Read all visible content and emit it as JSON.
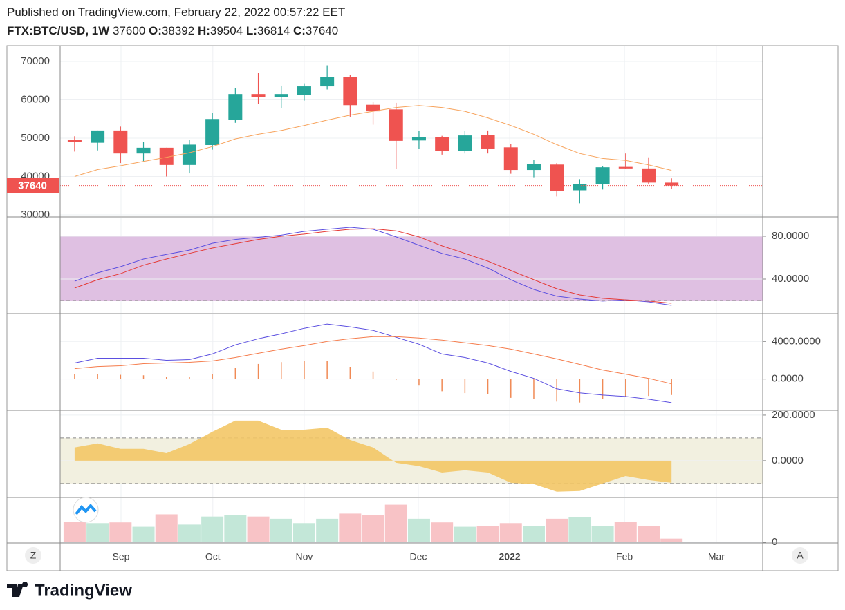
{
  "header": {
    "published": "Published on TradingView.com, February 22, 2022 00:57:22 EET",
    "symbol": "FTX:BTC/USD, 1W",
    "price": 37600,
    "ohlc": [
      {
        "label": "O:",
        "value": 38392
      },
      {
        "label": "H:",
        "value": 39504
      },
      {
        "label": "L:",
        "value": 36814
      },
      {
        "label": "C:",
        "value": 37640
      }
    ]
  },
  "buttons": {
    "left": "Z",
    "right": "A"
  },
  "footer": {
    "brand": "TradingView"
  },
  "chart_data": [
    {
      "type": "candlestick",
      "x": [
        0,
        1,
        2,
        3,
        4,
        5,
        6,
        7,
        8,
        9,
        10,
        11,
        12,
        13,
        14,
        15,
        16,
        17,
        18,
        19,
        20,
        21,
        22,
        23,
        24,
        25,
        26
      ],
      "xlim": [
        -0.63,
        29.97
      ],
      "xticks": [
        {
          "value": 2.02,
          "label": "Sep"
        },
        {
          "value": 6.02,
          "label": "Oct"
        },
        {
          "value": 10.0,
          "label": "Nov"
        },
        {
          "value": 14.97,
          "label": "Dec"
        },
        {
          "value": 18.95,
          "label": "2022"
        },
        {
          "value": 23.95,
          "label": "Feb"
        },
        {
          "value": 27.95,
          "label": "Mar"
        }
      ],
      "open": [
        49500,
        48800,
        52000,
        46000,
        47500,
        43000,
        48200,
        54800,
        61500,
        60800,
        61300,
        63500,
        65900,
        58700,
        57500,
        49400,
        50200,
        46700,
        50800,
        47600,
        41700,
        43100,
        36400,
        38100,
        42500,
        42100,
        38392
      ],
      "high": [
        50500,
        52000,
        53000,
        49000,
        47500,
        49500,
        56500,
        63000,
        67000,
        63700,
        64300,
        69000,
        66500,
        59500,
        59200,
        51900,
        50600,
        51800,
        52000,
        48500,
        44400,
        43500,
        39300,
        42600,
        46000,
        45000,
        39504
      ],
      "low": [
        46500,
        46800,
        43500,
        44000,
        40000,
        40800,
        47000,
        54000,
        59000,
        57800,
        59800,
        62700,
        55600,
        53500,
        42000,
        47200,
        45700,
        46000,
        46000,
        40700,
        39800,
        34800,
        33000,
        36600,
        41900,
        38100,
        36814
      ],
      "close": [
        49000,
        52000,
        46000,
        47500,
        43000,
        48300,
        55000,
        61500,
        60800,
        61500,
        63500,
        65900,
        58600,
        57000,
        49300,
        50300,
        46700,
        50700,
        47300,
        41700,
        43300,
        36300,
        38100,
        42400,
        42100,
        38400,
        37640
      ],
      "up_color": "#26a69a",
      "down_color": "#ef5350",
      "ma": {
        "color": "#f7a35c",
        "values": [
          40000,
          41800,
          42800,
          43900,
          45000,
          46200,
          47800,
          49800,
          51000,
          52000,
          53300,
          54700,
          56000,
          57000,
          58000,
          58500,
          58000,
          57000,
          55300,
          53300,
          51000,
          48300,
          46000,
          44700,
          44200,
          43000,
          41600
        ]
      },
      "last_price": 37640,
      "ylim": [
        29640,
        73960
      ],
      "yticks": [
        30000,
        40000,
        50000,
        60000,
        70000
      ],
      "grid": true
    },
    {
      "type": "line",
      "series": [
        {
          "color": "#5b4fe0",
          "values": [
            38,
            45.8,
            51.6,
            58.7,
            63,
            67,
            73.5,
            77,
            79,
            81,
            84.5,
            86.5,
            88.4,
            86.5,
            79.4,
            71.6,
            64,
            58.7,
            50.3,
            39.4,
            30.3,
            24,
            21.3,
            19.4,
            20.6,
            18.7,
            15.5
          ]
        },
        {
          "color": "#e53935",
          "values": [
            31.6,
            39.4,
            45,
            53,
            58.7,
            64,
            69,
            73,
            77,
            80,
            82,
            84.5,
            86.5,
            87,
            85,
            79.4,
            71,
            64,
            56.8,
            48,
            39.4,
            31,
            25.2,
            22,
            20.6,
            19.4,
            17.4
          ]
        }
      ],
      "band": [
        20,
        80
      ],
      "band_color": "#dfc0e2",
      "ylim": [
        8.4,
        97.4
      ],
      "yticks": [
        {
          "value": 80,
          "label": "80.0000"
        },
        {
          "value": 40,
          "label": "40.0000"
        }
      ],
      "grid": true
    },
    {
      "type": "line",
      "series": [
        {
          "color": "#5b4fe0",
          "values": [
            1704,
            2222,
            2222,
            2222,
            2000,
            2074,
            2667,
            3630,
            4296,
            4815,
            5407,
            5852,
            5556,
            5185,
            4444,
            3704,
            2667,
            2296,
            1704,
            815,
            74,
            -1037,
            -1481,
            -1704,
            -1852,
            -2148,
            -2519
          ]
        },
        {
          "color": "#f57c4c",
          "values": [
            1111,
            1333,
            1407,
            1630,
            1704,
            1778,
            1926,
            2296,
            2741,
            3185,
            3556,
            4000,
            4296,
            4519,
            4519,
            4370,
            4148,
            3852,
            3556,
            3185,
            2667,
            2148,
            1556,
            963,
            519,
            74,
            -519
          ]
        }
      ],
      "histogram": {
        "color": "#f08a55",
        "values": [
          500,
          500,
          450,
          400,
          200,
          200,
          500,
          1200,
          1600,
          1800,
          1900,
          1900,
          1300,
          800,
          -100,
          -700,
          -1300,
          -1500,
          -1600,
          -2000,
          -2100,
          -2400,
          -2500,
          -2100,
          -1900,
          -1800,
          -1700
        ]
      },
      "ylim": [
        -3259,
        6889
      ],
      "yticks": [
        {
          "value": 4000,
          "label": "4000.0000"
        },
        {
          "value": 0,
          "label": "0.0000"
        }
      ],
      "grid": true
    },
    {
      "type": "area",
      "color": "#f3c766",
      "values": [
        58,
        76,
        52,
        52,
        33,
        73,
        127,
        176,
        176,
        136,
        136,
        145,
        91,
        58,
        -9,
        -24,
        -52,
        -42,
        -52,
        -97,
        -103,
        -136,
        -133,
        -100,
        -67,
        -85,
        -97
      ],
      "band": [
        -100,
        100
      ],
      "band_color": "#f2f0e0",
      "ylim": [
        -158,
        218
      ],
      "yticks": [
        {
          "value": 200,
          "label": "200.0000"
        },
        {
          "value": 0,
          "label": "0.0000"
        }
      ],
      "grid": true
    },
    {
      "type": "bar",
      "values": [
        28,
        26,
        27,
        21,
        38,
        24,
        35,
        37,
        35,
        32,
        26,
        32,
        39,
        37,
        51,
        32,
        27,
        21,
        22,
        26,
        22,
        32,
        34,
        22,
        28,
        22,
        5
      ],
      "up_color": "#c3e7d8",
      "down_color": "#f8c3c6",
      "ylim": [
        0,
        60
      ],
      "yticks": [
        0
      ],
      "grid": true
    }
  ]
}
